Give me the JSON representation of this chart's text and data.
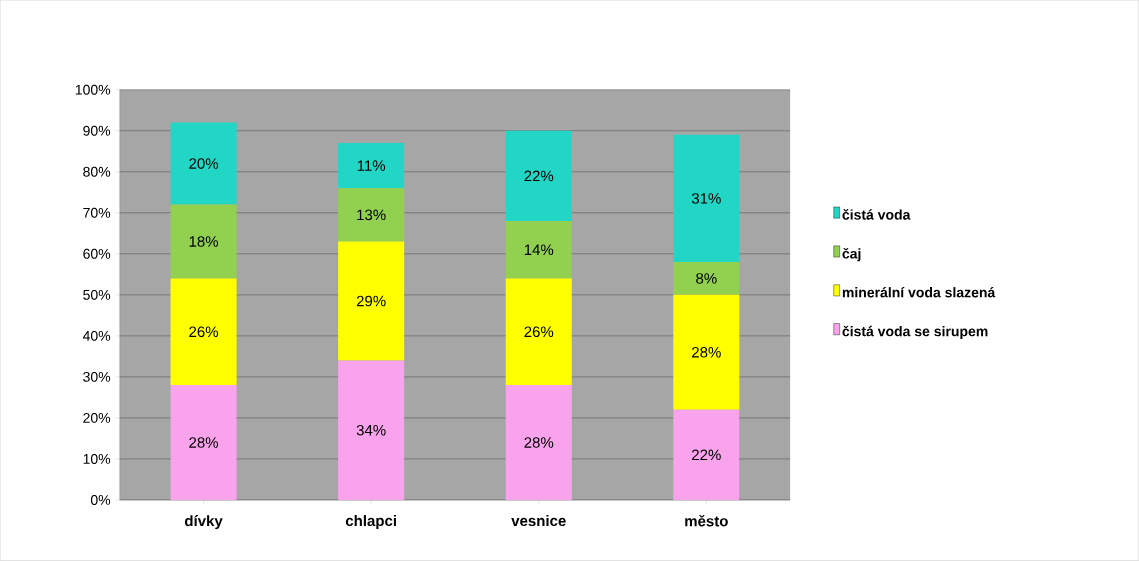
{
  "chart_data": {
    "type": "bar",
    "stacked": true,
    "categories": [
      "dívky",
      "chlapci",
      "vesnice",
      "město"
    ],
    "series": [
      {
        "name": "čistá voda se sirupem",
        "color": "#f9a3ec",
        "values": [
          28,
          34,
          28,
          22
        ],
        "value_labels": [
          "28%",
          "34%",
          "28%",
          "22%"
        ]
      },
      {
        "name": "minerální voda slazená",
        "color": "#ffff00",
        "values": [
          26,
          29,
          26,
          28
        ],
        "value_labels": [
          "26%",
          "29%",
          "26%",
          "28%"
        ]
      },
      {
        "name": "čaj",
        "color": "#92d050",
        "values": [
          18,
          13,
          14,
          8
        ],
        "value_labels": [
          "18%",
          "13%",
          "14%",
          "8%"
        ]
      },
      {
        "name": "čistá voda",
        "color": "#22d6c6",
        "values": [
          20,
          11,
          22,
          31
        ],
        "value_labels": [
          "20%",
          "11%",
          "22%",
          "31%"
        ]
      }
    ],
    "ylim": [
      0,
      100
    ],
    "yticks": [
      {
        "value": 0,
        "label": "0%"
      },
      {
        "value": 10,
        "label": "10%"
      },
      {
        "value": 20,
        "label": "20%"
      },
      {
        "value": 30,
        "label": "30%"
      },
      {
        "value": 40,
        "label": "40%"
      },
      {
        "value": 50,
        "label": "50%"
      },
      {
        "value": 60,
        "label": "60%"
      },
      {
        "value": 70,
        "label": "70%"
      },
      {
        "value": 80,
        "label": "80%"
      },
      {
        "value": 90,
        "label": "90%"
      },
      {
        "value": 100,
        "label": "100%"
      }
    ],
    "grid": "y",
    "legend": "right"
  }
}
